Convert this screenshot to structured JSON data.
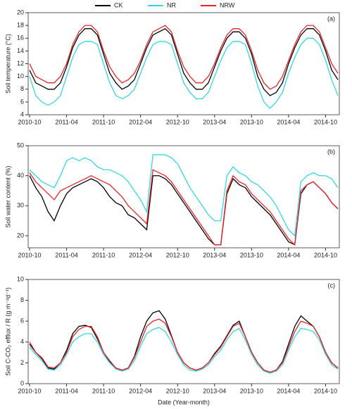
{
  "chart_data": [
    {
      "type": "line",
      "annotation": "(a)",
      "y_label": "Soil temperature (°C)",
      "x": [
        "2010-10",
        "2010-11",
        "2010-12",
        "2011-01",
        "2011-02",
        "2011-03",
        "2011-04",
        "2011-05",
        "2011-06",
        "2011-07",
        "2011-08",
        "2011-09",
        "2011-10",
        "2011-11",
        "2011-12",
        "2012-01",
        "2012-02",
        "2012-03",
        "2012-04",
        "2012-05",
        "2012-06",
        "2012-07",
        "2012-08",
        "2012-09",
        "2012-10",
        "2012-11",
        "2012-12",
        "2013-01",
        "2013-02",
        "2013-03",
        "2013-04",
        "2013-05",
        "2013-06",
        "2013-07",
        "2013-08",
        "2013-09",
        "2013-10",
        "2013-11",
        "2013-12",
        "2014-01",
        "2014-02",
        "2014-03",
        "2014-04",
        "2014-05",
        "2014-06",
        "2014-07",
        "2014-08",
        "2014-09",
        "2014-10",
        "2014-11",
        "2014-12"
      ],
      "xlim": [
        "2010-10",
        "2014-12"
      ],
      "xticks": [
        "2010-10",
        "2011-04",
        "2011-10",
        "2012-04",
        "2012-10",
        "2013-04",
        "2013-10",
        "2014-04",
        "2014-10"
      ],
      "ylim": [
        4,
        20
      ],
      "yticks": [
        4,
        6,
        8,
        10,
        12,
        14,
        16,
        18,
        20
      ],
      "series": [
        {
          "name": "CK",
          "color": "#000000",
          "values": [
            11,
            9,
            8.5,
            8,
            8,
            9,
            11.5,
            14.5,
            16.5,
            17.5,
            17.5,
            16.5,
            13.5,
            10.5,
            9,
            8,
            8.5,
            9.5,
            12,
            14.5,
            16.5,
            17,
            17.5,
            16.5,
            13.5,
            10.5,
            9,
            8,
            8,
            9,
            11.5,
            14,
            16,
            17,
            17,
            16,
            13.5,
            10,
            8,
            7,
            7.5,
            9,
            12,
            14.5,
            16.5,
            17.5,
            17.5,
            16.5,
            14,
            11,
            9.5
          ]
        },
        {
          "name": "NR",
          "color": "#33d6e8",
          "values": [
            10,
            7,
            6,
            5.5,
            6,
            7,
            10,
            13,
            15,
            15.5,
            15.5,
            15,
            12,
            9,
            7,
            6.5,
            7,
            8,
            10.5,
            13,
            15,
            15.5,
            15.5,
            15,
            12,
            9,
            7.5,
            6.5,
            6.5,
            7.5,
            10,
            12.5,
            14.5,
            15.5,
            15.5,
            15,
            12,
            8.5,
            6,
            5,
            6,
            7.5,
            10.5,
            13,
            15,
            16,
            16,
            15,
            12.5,
            9.5,
            7
          ]
        },
        {
          "name": "NRW",
          "color": "#e8262a",
          "values": [
            12,
            10,
            9.5,
            9,
            9,
            10,
            12,
            15,
            17,
            18,
            18,
            17,
            14,
            11.5,
            10,
            9,
            9.5,
            10.5,
            12.5,
            15,
            17,
            17.5,
            18,
            17,
            14,
            11.5,
            10,
            9,
            9,
            10,
            12,
            14.5,
            16.5,
            17.5,
            17.5,
            16.5,
            14,
            11,
            9,
            8,
            8.5,
            10,
            12.5,
            15,
            17,
            18,
            18,
            17,
            14.5,
            12,
            10.5
          ]
        }
      ]
    },
    {
      "type": "line",
      "annotation": "(b)",
      "y_label": "Soil water content (%)",
      "x": [
        "2010-10",
        "2010-11",
        "2010-12",
        "2011-01",
        "2011-02",
        "2011-03",
        "2011-04",
        "2011-05",
        "2011-06",
        "2011-07",
        "2011-08",
        "2011-09",
        "2011-10",
        "2011-11",
        "2011-12",
        "2012-01",
        "2012-02",
        "2012-03",
        "2012-04",
        "2012-05",
        "2012-06",
        "2012-07",
        "2012-08",
        "2012-09",
        "2012-10",
        "2012-11",
        "2012-12",
        "2013-01",
        "2013-02",
        "2013-03",
        "2013-04",
        "2013-05",
        "2013-06",
        "2013-07",
        "2013-08",
        "2013-09",
        "2013-10",
        "2013-11",
        "2013-12",
        "2014-01",
        "2014-02",
        "2014-03",
        "2014-04",
        "2014-05",
        "2014-06",
        "2014-07",
        "2014-08",
        "2014-09",
        "2014-10",
        "2014-11",
        "2014-12"
      ],
      "xlim": [
        "2010-10",
        "2014-12"
      ],
      "xticks": [
        "2010-10",
        "2011-04",
        "2011-10",
        "2012-04",
        "2012-10",
        "2013-04",
        "2013-10",
        "2014-04",
        "2014-10"
      ],
      "ylim": [
        16,
        50
      ],
      "yticks": [
        20,
        30,
        40,
        50
      ],
      "series": [
        {
          "color": "#000000",
          "values": [
            40,
            36,
            33,
            28,
            25,
            30,
            34,
            36,
            37,
            38,
            39,
            38,
            36,
            33,
            31,
            30,
            27,
            26,
            24,
            22,
            40,
            40,
            39,
            37,
            34,
            31,
            28,
            25,
            22,
            19,
            17,
            17,
            34,
            39,
            37,
            36,
            33,
            31,
            29,
            27,
            24,
            21,
            18,
            17,
            34,
            37,
            38,
            36,
            34,
            31,
            29
          ]
        },
        {
          "color": "#33d6e8",
          "values": [
            42,
            40,
            38,
            37,
            36,
            40,
            45,
            46,
            45,
            46,
            45,
            43,
            42,
            42,
            41,
            40,
            38,
            35,
            32,
            28,
            47,
            47,
            47,
            46,
            44,
            40,
            36,
            33,
            30,
            27,
            25,
            25,
            40,
            43,
            41,
            40,
            38,
            37,
            35,
            33,
            30,
            26,
            22,
            20,
            38,
            40,
            41,
            40,
            40,
            39,
            36
          ]
        },
        {
          "color": "#e8262a",
          "values": [
            41,
            38,
            36,
            34,
            32,
            35,
            36,
            37,
            38,
            39,
            40,
            39,
            38,
            37,
            35,
            33,
            30,
            28,
            26,
            24,
            42,
            41,
            40,
            38,
            35,
            32,
            29,
            26,
            23,
            20,
            17,
            17,
            35,
            40,
            38,
            37,
            34,
            32,
            30,
            28,
            25,
            22,
            19,
            17,
            35,
            37,
            38,
            36,
            34,
            31,
            29
          ]
        }
      ]
    },
    {
      "type": "line",
      "annotation": "(c)",
      "y_label": "Soil C-CO₂ efflux / R (g m⁻²d⁻¹)",
      "x_label": "Date (Year-month)",
      "x": [
        "2010-10",
        "2010-11",
        "2010-12",
        "2011-01",
        "2011-02",
        "2011-03",
        "2011-04",
        "2011-05",
        "2011-06",
        "2011-07",
        "2011-08",
        "2011-09",
        "2011-10",
        "2011-11",
        "2011-12",
        "2012-01",
        "2012-02",
        "2012-03",
        "2012-04",
        "2012-05",
        "2012-06",
        "2012-07",
        "2012-08",
        "2012-09",
        "2012-10",
        "2012-11",
        "2012-12",
        "2013-01",
        "2013-02",
        "2013-03",
        "2013-04",
        "2013-05",
        "2013-06",
        "2013-07",
        "2013-08",
        "2013-09",
        "2013-10",
        "2013-11",
        "2013-12",
        "2014-01",
        "2014-02",
        "2014-03",
        "2014-04",
        "2014-05",
        "2014-06",
        "2014-07",
        "2014-08",
        "2014-09",
        "2014-10",
        "2014-11",
        "2014-12"
      ],
      "xlim": [
        "2010-10",
        "2014-12"
      ],
      "xticks": [
        "2010-10",
        "2011-04",
        "2011-10",
        "2012-04",
        "2012-10",
        "2013-04",
        "2013-10",
        "2014-04",
        "2014-10"
      ],
      "ylim": [
        0,
        10
      ],
      "yticks": [
        0,
        2,
        4,
        6,
        8,
        10
      ],
      "series": [
        {
          "color": "#000000",
          "values": [
            3.8,
            3,
            2.4,
            1.5,
            1.4,
            2,
            3.2,
            4.8,
            5.5,
            5.6,
            5.4,
            4.3,
            3,
            2.1,
            1.5,
            1.3,
            1.5,
            2.6,
            4.5,
            6,
            6.8,
            7,
            6.2,
            4.6,
            3,
            2,
            1.5,
            1.3,
            1.5,
            2,
            2.9,
            3.6,
            4.6,
            5.6,
            6,
            4.5,
            3,
            2,
            1.3,
            1.1,
            1.3,
            2.1,
            3.8,
            5.5,
            6.5,
            6,
            5.5,
            4.5,
            3,
            2,
            1.5
          ]
        },
        {
          "color": "#33d6e8",
          "values": [
            3.5,
            2.8,
            2.2,
            1.4,
            1.3,
            1.8,
            2.8,
            4,
            4.5,
            4.8,
            4.8,
            4,
            2.8,
            2,
            1.4,
            1.2,
            1.4,
            2.2,
            3.6,
            4.8,
            5.2,
            5.4,
            5,
            4,
            2.8,
            1.8,
            1.3,
            1.2,
            1.4,
            1.8,
            2.6,
            3.2,
            4.2,
            5,
            5.3,
            4.2,
            2.8,
            1.8,
            1.2,
            1,
            1.2,
            1.8,
            3.2,
            4.5,
            5.3,
            5.2,
            5,
            4.2,
            2.8,
            1.8,
            1.4
          ]
        },
        {
          "color": "#e8262a",
          "values": [
            4,
            3,
            2.5,
            1.6,
            1.5,
            2,
            3,
            4.5,
            5.2,
            5.5,
            5.5,
            4.5,
            3,
            2.2,
            1.5,
            1.3,
            1.5,
            2.5,
            4,
            5.5,
            6,
            6.2,
            5.8,
            4.5,
            3,
            2,
            1.5,
            1.3,
            1.5,
            2,
            2.8,
            3.5,
            4.5,
            5.5,
            5.8,
            4.5,
            3,
            2,
            1.3,
            1.1,
            1.3,
            2,
            3.5,
            5,
            6,
            5.8,
            5.5,
            4.5,
            3,
            2,
            1.5
          ]
        }
      ]
    }
  ]
}
